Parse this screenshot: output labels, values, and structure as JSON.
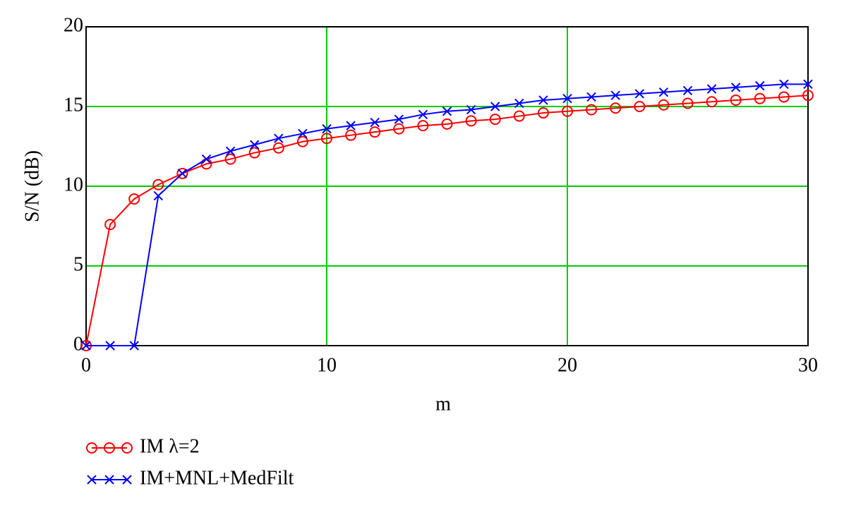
{
  "chart_data": {
    "type": "line",
    "xlabel": "m",
    "ylabel": "S/N (dB)",
    "x": [
      0,
      1,
      2,
      3,
      4,
      5,
      6,
      7,
      8,
      9,
      10,
      11,
      12,
      13,
      14,
      15,
      16,
      17,
      18,
      19,
      20,
      21,
      22,
      23,
      24,
      25,
      26,
      27,
      28,
      29,
      30
    ],
    "series": [
      {
        "name": "IM λ=2",
        "color": "#ff0000",
        "marker": "circle",
        "values": [
          0,
          7.6,
          9.2,
          10.1,
          10.8,
          11.4,
          11.7,
          12.1,
          12.4,
          12.8,
          13.0,
          13.2,
          13.4,
          13.6,
          13.8,
          13.9,
          14.1,
          14.2,
          14.4,
          14.6,
          14.7,
          14.8,
          14.9,
          15.0,
          15.1,
          15.2,
          15.3,
          15.4,
          15.5,
          15.6,
          15.7
        ]
      },
      {
        "name": "IM+MNL+MedFilt",
        "color": "#0000ff",
        "marker": "x",
        "values": [
          0,
          0,
          0,
          9.4,
          10.8,
          11.7,
          12.2,
          12.6,
          13.0,
          13.3,
          13.6,
          13.8,
          14.0,
          14.2,
          14.5,
          14.7,
          14.8,
          15.0,
          15.2,
          15.4,
          15.5,
          15.6,
          15.7,
          15.8,
          15.9,
          16.0,
          16.1,
          16.2,
          16.3,
          16.4,
          16.4
        ]
      }
    ],
    "xlim": [
      0,
      30
    ],
    "xticks": [
      0,
      10,
      20,
      30
    ],
    "ylim": [
      0,
      20
    ],
    "yticks": [
      0,
      5,
      10,
      15,
      20
    ],
    "grid": true,
    "grid_color": "#00cc00",
    "legend": "bottom-left"
  }
}
